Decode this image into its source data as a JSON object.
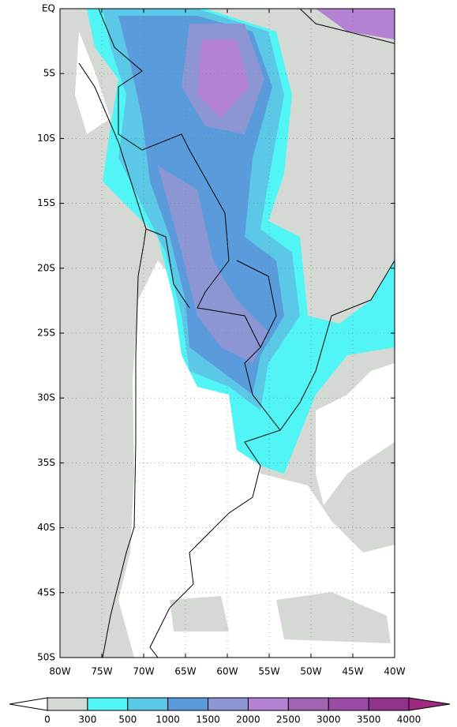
{
  "map": {
    "lat_labels": [
      "EQ",
      "5S",
      "10S",
      "15S",
      "20S",
      "25S",
      "30S",
      "35S",
      "40S",
      "45S",
      "50S"
    ],
    "lon_labels": [
      "80W",
      "75W",
      "70W",
      "65W",
      "60W",
      "55W",
      "50W",
      "45W",
      "40W"
    ]
  },
  "colorbar": {
    "levels": [
      0,
      300,
      500,
      1000,
      1500,
      2000,
      2500,
      3000,
      3500,
      4000
    ],
    "colors": [
      "#ffffff",
      "#d4d9d3",
      "#52f5f5",
      "#5ac8e6",
      "#5a9bdc",
      "#8c96d2",
      "#b482d2",
      "#a064b4",
      "#9b4ba5",
      "#91328c",
      "#a02880"
    ]
  }
}
